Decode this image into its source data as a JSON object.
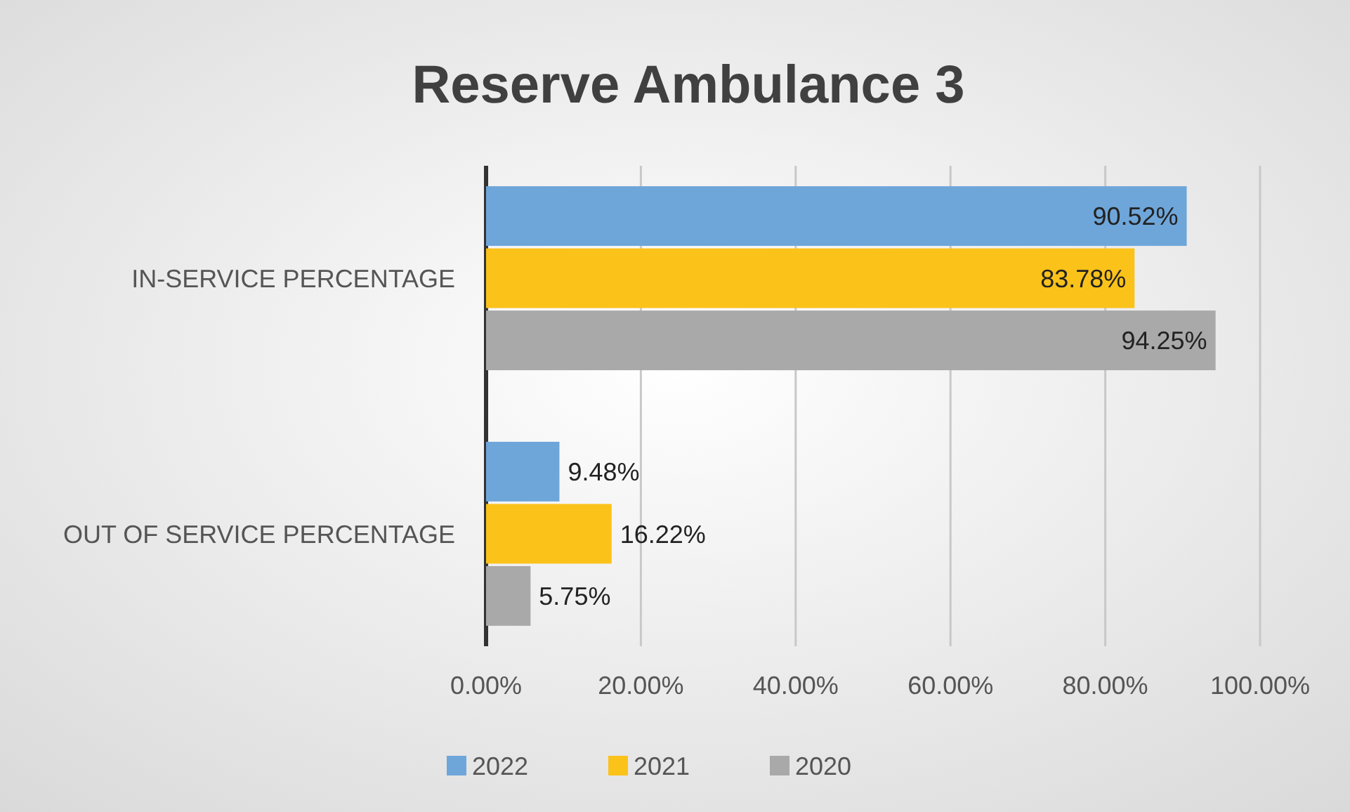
{
  "chart_data": {
    "type": "bar",
    "orientation": "horizontal",
    "title": "Reserve Ambulance 3",
    "categories": [
      "IN-SERVICE PERCENTAGE",
      "OUT OF SERVICE PERCENTAGE"
    ],
    "series": [
      {
        "name": "2022",
        "color": "#6fa6da",
        "values": [
          90.52,
          9.48
        ],
        "value_labels": [
          "90.52%",
          "9.48%"
        ]
      },
      {
        "name": "2021",
        "color": "#fbc21a",
        "values": [
          83.78,
          16.22
        ],
        "value_labels": [
          "83.78%",
          "16.22%"
        ]
      },
      {
        "name": "2020",
        "color": "#a9a9a9",
        "values": [
          94.25,
          5.75
        ],
        "value_labels": [
          "94.25%",
          "5.75%"
        ]
      }
    ],
    "xlim": [
      0,
      100
    ],
    "xticks": [
      {
        "value": 0,
        "label": "0.00%"
      },
      {
        "value": 20,
        "label": "20.00%"
      },
      {
        "value": 40,
        "label": "40.00%"
      },
      {
        "value": 60,
        "label": "60.00%"
      },
      {
        "value": 80,
        "label": "80.00%"
      },
      {
        "value": 100,
        "label": "100.00%"
      }
    ],
    "grid": "x",
    "legend": "bottom"
  }
}
